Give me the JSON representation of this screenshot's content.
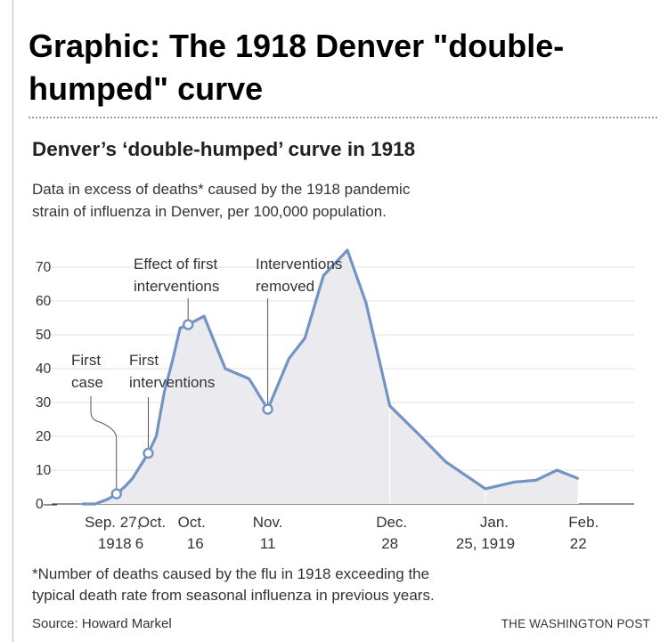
{
  "page": {
    "title": "Graphic: The 1918 Denver \"double-humped\" curve",
    "footnote_lines": [
      "*Number of deaths caused by the flu in 1918 exceeding the",
      "typical death rate from seasonal influenza in previous years."
    ],
    "source": "Source: Howard Markel",
    "credit": "THE WASHINGTON POST"
  },
  "chart_data": {
    "type": "area",
    "title": "Denver’s ‘double-humped’ curve in 1918",
    "subtitle_lines": [
      "Data in excess of deaths* caused by the 1918 pandemic",
      "strain of influenza in Denver, per 100,000 population."
    ],
    "ylim": [
      0,
      75
    ],
    "y_ticks": [
      0,
      10,
      20,
      30,
      40,
      50,
      60,
      70
    ],
    "grid": true,
    "colors": {
      "line": "#7393c4",
      "fill": "#ebebef",
      "grid": "#e2e2e2"
    },
    "series": [
      {
        "points": [
          {
            "day": 0,
            "value": 0
          },
          {
            "day": 5,
            "value": 0
          },
          {
            "day": 10,
            "value": 1.5
          },
          {
            "day": 13,
            "value": 3
          },
          {
            "day": 16,
            "value": 5
          },
          {
            "day": 19,
            "value": 7.5
          },
          {
            "day": 25,
            "value": 15
          },
          {
            "day": 28,
            "value": 20
          },
          {
            "day": 31,
            "value": 33
          },
          {
            "day": 34,
            "value": 42
          },
          {
            "day": 37,
            "value": 52
          },
          {
            "day": 40,
            "value": 53
          },
          {
            "day": 46,
            "value": 55.5
          },
          {
            "day": 54,
            "value": 40
          },
          {
            "day": 63,
            "value": 37
          },
          {
            "day": 70,
            "value": 28
          },
          {
            "day": 78,
            "value": 43
          },
          {
            "day": 84,
            "value": 49
          },
          {
            "day": 91,
            "value": 67.5
          },
          {
            "day": 100,
            "value": 75
          },
          {
            "day": 107,
            "value": 59.5
          },
          {
            "day": 116,
            "value": 29
          },
          {
            "day": 127,
            "value": 20.5
          },
          {
            "day": 137,
            "value": 12.5
          },
          {
            "day": 152,
            "value": 4.5
          },
          {
            "day": 163,
            "value": 6.5
          },
          {
            "day": 171,
            "value": 7
          },
          {
            "day": 179,
            "value": 10
          },
          {
            "day": 187,
            "value": 7.5
          }
        ]
      }
    ],
    "x_labels": [
      {
        "day": 13,
        "lines": [
          "Sep. 27,",
          "1918"
        ]
      },
      {
        "day": 25,
        "lines": [
          "Oct.",
          "6"
        ]
      },
      {
        "day": 40,
        "lines": [
          "Oct.",
          "16"
        ]
      },
      {
        "day": 70,
        "lines": [
          "Nov.",
          "11"
        ]
      },
      {
        "day": 116,
        "lines": [
          "Dec.",
          "28"
        ]
      },
      {
        "day": 152,
        "lines": [
          "Jan.",
          "25, 1919"
        ]
      },
      {
        "day": 187,
        "lines": [
          "Feb.",
          "22"
        ]
      }
    ],
    "annotations": [
      {
        "id": "first-case",
        "day": 13,
        "value": 3,
        "lines": [
          "First",
          "case"
        ]
      },
      {
        "id": "first-interventions",
        "day": 25,
        "value": 15,
        "lines": [
          "First",
          "interventions"
        ]
      },
      {
        "id": "effect-interventions",
        "day": 40,
        "value": 53,
        "lines": [
          "Effect of first",
          "interventions"
        ]
      },
      {
        "id": "interventions-removed",
        "day": 70,
        "value": 28,
        "lines": [
          "Interventions",
          "removed"
        ]
      }
    ]
  }
}
